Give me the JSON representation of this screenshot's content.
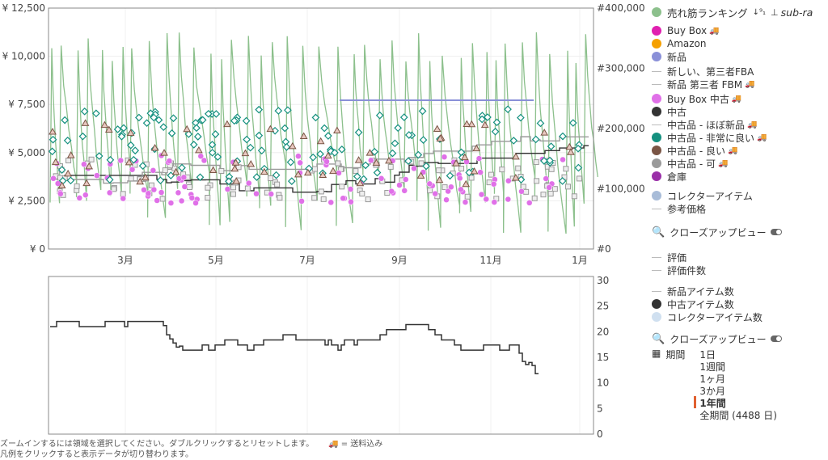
{
  "top_chart": {
    "y_left_ticks": [
      "¥ 12,500",
      "¥ 10,000",
      "¥ 7,500",
      "¥ 5,000",
      "¥ 2,500",
      "¥ 0"
    ],
    "y_right_ticks": [
      "#400,000",
      "#300,000",
      "#200,000",
      "#100,000",
      "#0"
    ],
    "x_ticks": [
      "3月",
      "5月",
      "7月",
      "9月",
      "11月",
      "1月"
    ]
  },
  "bottom_chart": {
    "y_right_ticks": [
      "30",
      "25",
      "20",
      "15",
      "10",
      "5",
      "0"
    ]
  },
  "legend": {
    "sales_rank": "売れ筋ランキング",
    "sort_icon": "↓⁹₁",
    "sub_rank": "sub-ra",
    "items": [
      {
        "label": "Buy Box",
        "marker": "dot",
        "color": "#e020b0",
        "truck": true
      },
      {
        "label": "Amazon",
        "marker": "dot",
        "color": "#f5a000",
        "truck": false
      },
      {
        "label": "新品",
        "marker": "dot",
        "color": "#8a90d8",
        "truck": false
      },
      {
        "label": "新しい、第三者FBA",
        "marker": "dash",
        "color": "#bbbbbb",
        "truck": false
      },
      {
        "label": "新品 第三者 FBM",
        "marker": "dash",
        "color": "#bbbbbb",
        "truck": true
      },
      {
        "label": "Buy Box 中古",
        "marker": "dot",
        "color": "#e070e8",
        "truck": true
      },
      {
        "label": "中古",
        "marker": "dot",
        "color": "#333333",
        "truck": false
      },
      {
        "label": "中古品 - ほぼ新品",
        "marker": "dash",
        "color": "#bbbbbb",
        "truck": true
      },
      {
        "label": "中古品 - 非常に良い",
        "marker": "dot",
        "color": "#14907f",
        "truck": true
      },
      {
        "label": "中古品 - 良い",
        "marker": "dot",
        "color": "#7a5545",
        "truck": true
      },
      {
        "label": "中古品 - 可",
        "marker": "dot",
        "color": "#9a9a9a",
        "truck": true
      },
      {
        "label": "倉庫",
        "marker": "dot",
        "color": "#9a30a8",
        "truck": false
      },
      {
        "label": "コレクターアイテム",
        "marker": "dot",
        "color": "#a8bcd8",
        "truck": false
      },
      {
        "label": "参考価格",
        "marker": "dash",
        "color": "#bbbbbb",
        "truck": false
      }
    ],
    "closeup1": "クローズアップビュー",
    "items2": [
      {
        "label": "評価",
        "marker": "dash",
        "color": "#bbbbbb"
      },
      {
        "label": "評価件数",
        "marker": "dash",
        "color": "#bbbbbb"
      },
      {
        "label": "新品アイテム数",
        "marker": "dash",
        "color": "#bbbbbb"
      },
      {
        "label": "中古アイテム数",
        "marker": "dot",
        "color": "#333333"
      },
      {
        "label": "コレクターアイテム数",
        "marker": "dot",
        "color": "#d0e0f0"
      }
    ],
    "closeup2": "クローズアップビュー",
    "period_label": "期間",
    "ranges": [
      "1日",
      "1週間",
      "1ヶ月",
      "3か月",
      "1年間",
      "全期間 (4488 日)"
    ],
    "selected_range": "1年間"
  },
  "footer": {
    "line1": "ズームインするには領域を選択してください。ダブルクリックするとリセットします。",
    "shipping_note": "= 送料込み",
    "line2": "凡例をクリックすると表示データが切り替わります。"
  },
  "colors": {
    "rank": "#8cc08c",
    "used": "#333333",
    "very_good": "#14907f",
    "good": "#7a5545",
    "acceptable": "#9a9a9a",
    "buybox_used": "#e070e8",
    "new": "#8a90d8"
  }
}
